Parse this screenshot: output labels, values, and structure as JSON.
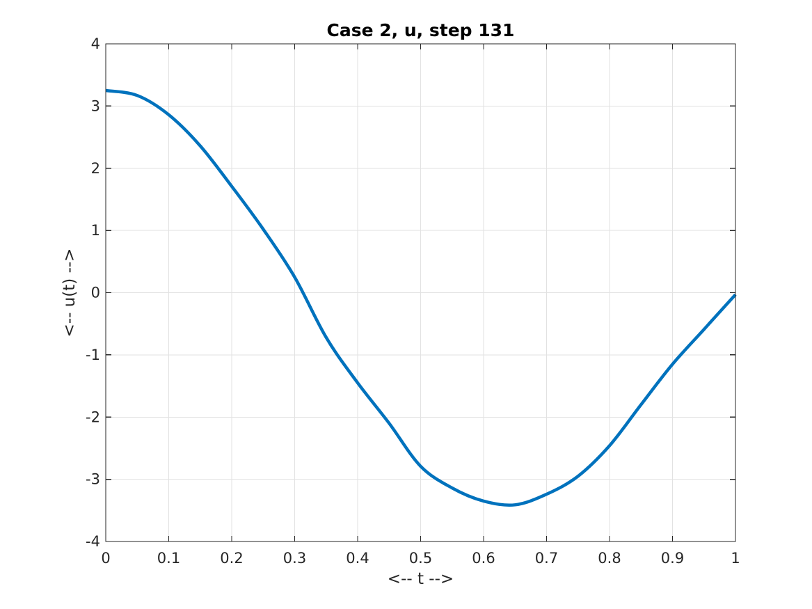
{
  "figure": {
    "background": "#ffffff"
  },
  "chart_data": {
    "type": "line",
    "title": "Case 2, u, step 131",
    "xlabel": "<-- t -->",
    "ylabel": "<-- u(t) -->",
    "xlim": [
      0,
      1
    ],
    "ylim": [
      -4,
      4
    ],
    "xticks": [
      0,
      0.1,
      0.2,
      0.3,
      0.4,
      0.5,
      0.6,
      0.7,
      0.8,
      0.9,
      1
    ],
    "xtick_labels": [
      "0",
      "0.1",
      "0.2",
      "0.3",
      "0.4",
      "0.5",
      "0.6",
      "0.7",
      "0.8",
      "0.9",
      "1"
    ],
    "yticks": [
      -4,
      -3,
      -2,
      -1,
      0,
      1,
      2,
      3,
      4
    ],
    "ytick_labels": [
      "-4",
      "-3",
      "-2",
      "-1",
      "0",
      "1",
      "2",
      "3",
      "4"
    ],
    "grid": true,
    "box": true,
    "legend_position": "none",
    "series": [
      {
        "name": "u",
        "color": "#0072BD",
        "line_width": 4.5,
        "x": [
          0,
          0.05,
          0.1,
          0.15,
          0.2,
          0.25,
          0.3,
          0.35,
          0.4,
          0.45,
          0.5,
          0.55,
          0.6,
          0.65,
          0.7,
          0.75,
          0.8,
          0.85,
          0.9,
          0.95,
          1
        ],
        "y": [
          3.25,
          3.17,
          2.86,
          2.36,
          1.71,
          1.02,
          0.25,
          -0.72,
          -1.45,
          -2.1,
          -2.79,
          -3.14,
          -3.35,
          -3.41,
          -3.24,
          -2.95,
          -2.46,
          -1.8,
          -1.15,
          -0.59,
          -0.03
        ]
      }
    ],
    "colors": {
      "grid": "#e2e2e2",
      "axis": "#262626",
      "tick_label": "#262626",
      "title": "#000000"
    }
  }
}
